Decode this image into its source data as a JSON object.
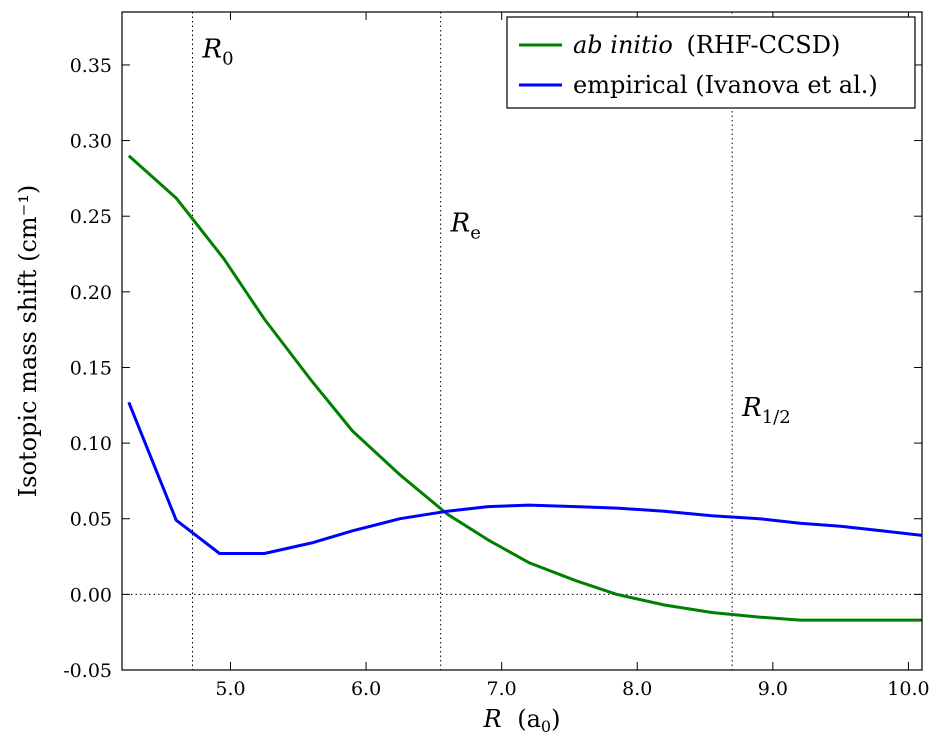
{
  "chart_data": {
    "type": "line",
    "xlabel": "R",
    "xlabel_unit": "(a0)",
    "xlabel_unit_base": "(a",
    "xlabel_unit_sub": "0",
    "xlabel_unit_close": ")",
    "ylabel": "Isotopic mass shift (cm⁻¹)",
    "xlim": [
      4.2,
      10.1
    ],
    "ylim": [
      -0.05,
      0.385
    ],
    "x_ticks": [
      5.0,
      6.0,
      7.0,
      8.0,
      9.0,
      10.0
    ],
    "x_tick_labels": [
      "5.0",
      "6.0",
      "7.0",
      "8.0",
      "9.0",
      "10.0"
    ],
    "y_ticks": [
      -0.05,
      0.0,
      0.05,
      0.1,
      0.15,
      0.2,
      0.25,
      0.3,
      0.35
    ],
    "y_tick_labels": [
      "-0.05",
      "0.00",
      "0.05",
      "0.10",
      "0.15",
      "0.20",
      "0.25",
      "0.30",
      "0.35"
    ],
    "legend_position": "top-right",
    "series": [
      {
        "name": "ab initio (RHF-CCSD)",
        "name_italic": "ab initio",
        "name_rest": "(RHF-CCSD)",
        "color": "#008000",
        "x": [
          4.25,
          4.6,
          4.95,
          5.25,
          5.6,
          5.9,
          6.25,
          6.6,
          6.9,
          7.2,
          7.55,
          7.85,
          8.2,
          8.55,
          8.9,
          9.2,
          9.5,
          9.8,
          10.1
        ],
        "y": [
          0.29,
          0.262,
          0.222,
          0.182,
          0.141,
          0.108,
          0.079,
          0.053,
          0.036,
          0.021,
          0.009,
          0.0,
          -0.007,
          -0.012,
          -0.015,
          -0.017,
          -0.017,
          -0.017,
          -0.017
        ]
      },
      {
        "name": "empirical (Ivanova et al.)",
        "color": "#0000ff",
        "x": [
          4.25,
          4.6,
          4.92,
          5.25,
          5.6,
          5.9,
          6.25,
          6.6,
          6.9,
          7.2,
          7.55,
          7.85,
          8.2,
          8.55,
          8.9,
          9.2,
          9.5,
          9.8,
          10.1
        ],
        "y": [
          0.127,
          0.049,
          0.027,
          0.027,
          0.034,
          0.042,
          0.05,
          0.055,
          0.058,
          0.059,
          0.058,
          0.057,
          0.055,
          0.052,
          0.05,
          0.047,
          0.045,
          0.042,
          0.039
        ]
      }
    ],
    "reference_lines": {
      "vertical": [
        {
          "x": 4.72,
          "label": "R",
          "label_sub": "0",
          "label_y": 0.355
        },
        {
          "x": 6.55,
          "label": "R",
          "label_sub": "e",
          "label_y": 0.24
        },
        {
          "x": 8.7,
          "label": "R",
          "label_sub": "1/2",
          "label_y": 0.118
        }
      ],
      "horizontal": [
        {
          "y": 0.0
        }
      ]
    },
    "grid": false
  }
}
